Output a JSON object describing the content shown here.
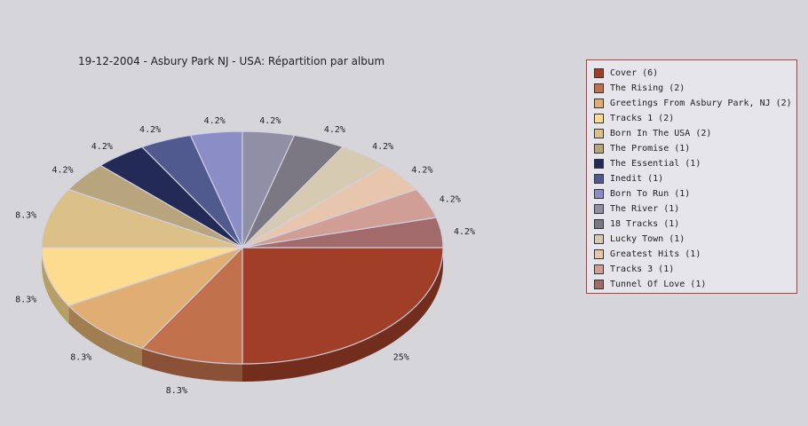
{
  "chart_data": {
    "type": "pie",
    "title": "19-12-2004 - Asbury Park NJ - USA:  Répartition par album",
    "slices": [
      {
        "label": "Cover (6)",
        "value": 6,
        "pct": "25%",
        "color": "#a03e28"
      },
      {
        "label": "The Rising (2)",
        "value": 2,
        "pct": "8.3%",
        "color": "#c0714b"
      },
      {
        "label": "Greetings From Asbury Park, NJ (2)",
        "value": 2,
        "pct": "8.3%",
        "color": "#e0ad72"
      },
      {
        "label": "Tracks 1 (2)",
        "value": 2,
        "pct": "8.3%",
        "color": "#fddb8f"
      },
      {
        "label": "Born In The USA (2)",
        "value": 2,
        "pct": "8.3%",
        "color": "#dbc188"
      },
      {
        "label": "The Promise (1)",
        "value": 1,
        "pct": "4.2%",
        "color": "#b8a57e"
      },
      {
        "label": "The Essential (1)",
        "value": 1,
        "pct": "4.2%",
        "color": "#232a55"
      },
      {
        "label": "Inedit (1)",
        "value": 1,
        "pct": "4.2%",
        "color": "#505a8e"
      },
      {
        "label": "Born To Run (1)",
        "value": 1,
        "pct": "4.2%",
        "color": "#8a8dc6"
      },
      {
        "label": "The River (1)",
        "value": 1,
        "pct": "4.2%",
        "color": "#908fa6"
      },
      {
        "label": "18 Tracks (1)",
        "value": 1,
        "pct": "4.2%",
        "color": "#7b7883"
      },
      {
        "label": "Lucky Town (1)",
        "value": 1,
        "pct": "4.2%",
        "color": "#d6cab2"
      },
      {
        "label": "Greatest Hits (1)",
        "value": 1,
        "pct": "4.2%",
        "color": "#e8c6ad"
      },
      {
        "label": "Tracks 3 (1)",
        "value": 1,
        "pct": "4.2%",
        "color": "#d09e95"
      },
      {
        "label": "Tunnel Of Love (1)",
        "value": 1,
        "pct": "4.2%",
        "color": "#a26a6a"
      }
    ],
    "legend_position": "right"
  }
}
